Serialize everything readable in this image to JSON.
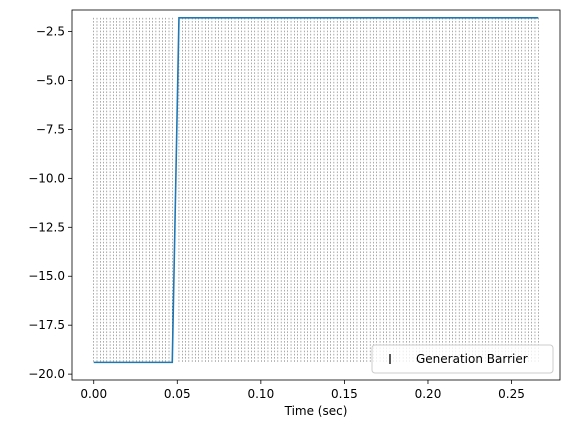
{
  "chart_data": {
    "type": "line",
    "title": "",
    "xlabel": "Time (sec)",
    "ylabel": "",
    "xlim": [
      -0.013,
      0.279
    ],
    "ylim": [
      -20.3,
      -1.4
    ],
    "xticks": [
      0.0,
      0.05,
      0.1,
      0.15,
      0.2,
      0.25
    ],
    "xtick_labels": [
      "0.00",
      "0.05",
      "0.10",
      "0.15",
      "0.20",
      "0.25"
    ],
    "yticks": [
      -2.5,
      -5.0,
      -7.5,
      -10.0,
      -12.5,
      -15.0,
      -17.5,
      -20.0
    ],
    "ytick_labels": [
      "−2.5",
      "−5.0",
      "−7.5",
      "−10.0",
      "−12.5",
      "−15.0",
      "−17.5",
      "−20.0"
    ],
    "grid": false,
    "legend_position": "lower-right",
    "series": [
      {
        "name": "",
        "color": "#1f77b4",
        "x": [
          0.0,
          0.047,
          0.051,
          0.266
        ],
        "y": [
          -19.4,
          -19.4,
          -1.8,
          -1.8
        ]
      }
    ],
    "barriers": {
      "name": "Generation Barrier",
      "color": "#555555",
      "y_range": [
        -19.4,
        -1.8
      ],
      "ranges": [
        {
          "start": 0.0,
          "end": 0.047,
          "count": 25
        },
        {
          "start": 0.051,
          "end": 0.266,
          "count": 110
        }
      ]
    }
  }
}
